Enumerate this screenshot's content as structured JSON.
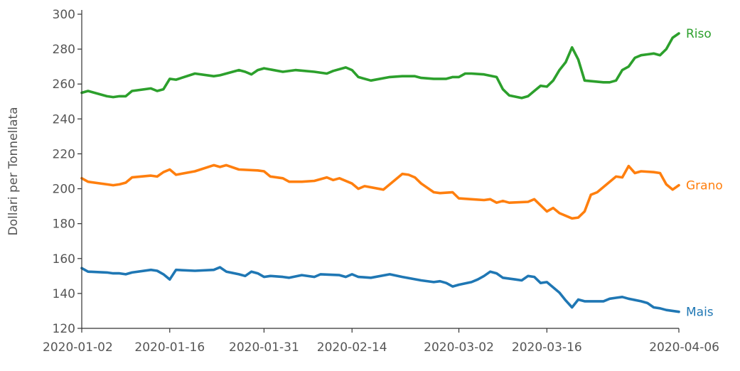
{
  "chart_data": {
    "type": "line",
    "title": "",
    "xlabel": "",
    "ylabel": "Dollari per Tonnellata",
    "ylim": [
      120,
      300
    ],
    "xlim": [
      "2020-01-02",
      "2020-04-06"
    ],
    "y_ticks": [
      120,
      140,
      160,
      180,
      200,
      220,
      240,
      260,
      280,
      300
    ],
    "x_ticks": [
      "2020-01-02",
      "2020-01-16",
      "2020-01-31",
      "2020-02-14",
      "2020-03-02",
      "2020-03-16",
      "2020-04-06"
    ],
    "grid": false,
    "legend": "inline labels at line ends",
    "series": [
      {
        "name": "Riso",
        "color": "#2ca02c",
        "points": [
          [
            "2020-01-02",
            255
          ],
          [
            "2020-01-03",
            256
          ],
          [
            "2020-01-06",
            253
          ],
          [
            "2020-01-07",
            252.5
          ],
          [
            "2020-01-08",
            253
          ],
          [
            "2020-01-09",
            253
          ],
          [
            "2020-01-10",
            256
          ],
          [
            "2020-01-13",
            257.5
          ],
          [
            "2020-01-14",
            256
          ],
          [
            "2020-01-15",
            257
          ],
          [
            "2020-01-16",
            263
          ],
          [
            "2020-01-17",
            262.5
          ],
          [
            "2020-01-20",
            266
          ],
          [
            "2020-01-23",
            264.5
          ],
          [
            "2020-01-24",
            265
          ],
          [
            "2020-01-27",
            268
          ],
          [
            "2020-01-28",
            267
          ],
          [
            "2020-01-29",
            265.5
          ],
          [
            "2020-01-30",
            268
          ],
          [
            "2020-01-31",
            269
          ],
          [
            "2020-02-03",
            267
          ],
          [
            "2020-02-05",
            268
          ],
          [
            "2020-02-08",
            267
          ],
          [
            "2020-02-10",
            266
          ],
          [
            "2020-02-11",
            267.5
          ],
          [
            "2020-02-13",
            269.5
          ],
          [
            "2020-02-14",
            268
          ],
          [
            "2020-02-15",
            264
          ],
          [
            "2020-02-17",
            262
          ],
          [
            "2020-02-20",
            264
          ],
          [
            "2020-02-22",
            264.5
          ],
          [
            "2020-02-24",
            264.5
          ],
          [
            "2020-02-25",
            263.5
          ],
          [
            "2020-02-27",
            263
          ],
          [
            "2020-02-29",
            263
          ],
          [
            "2020-03-01",
            264
          ],
          [
            "2020-03-02",
            264
          ],
          [
            "2020-03-03",
            266
          ],
          [
            "2020-03-04",
            266
          ],
          [
            "2020-03-06",
            265.5
          ],
          [
            "2020-03-08",
            264
          ],
          [
            "2020-03-09",
            257
          ],
          [
            "2020-03-10",
            253.5
          ],
          [
            "2020-03-12",
            252
          ],
          [
            "2020-03-13",
            253
          ],
          [
            "2020-03-14",
            256
          ],
          [
            "2020-03-15",
            259
          ],
          [
            "2020-03-16",
            258.5
          ],
          [
            "2020-03-17",
            262
          ],
          [
            "2020-03-18",
            268
          ],
          [
            "2020-03-19",
            272.5
          ],
          [
            "2020-03-20",
            281
          ],
          [
            "2020-03-21",
            274
          ],
          [
            "2020-03-22",
            262
          ],
          [
            "2020-03-25",
            261
          ],
          [
            "2020-03-26",
            261
          ],
          [
            "2020-03-27",
            262
          ],
          [
            "2020-03-28",
            268
          ],
          [
            "2020-03-29",
            270
          ],
          [
            "2020-03-30",
            275
          ],
          [
            "2020-03-31",
            276.5
          ],
          [
            "2020-04-01",
            277
          ],
          [
            "2020-04-02",
            277.5
          ],
          [
            "2020-04-03",
            276.5
          ],
          [
            "2020-04-04",
            280
          ],
          [
            "2020-04-05",
            286.5
          ],
          [
            "2020-04-06",
            289
          ]
        ]
      },
      {
        "name": "Grano",
        "color": "#ff7f0e",
        "points": [
          [
            "2020-01-02",
            206
          ],
          [
            "2020-01-03",
            204
          ],
          [
            "2020-01-06",
            202.5
          ],
          [
            "2020-01-07",
            202
          ],
          [
            "2020-01-08",
            202.5
          ],
          [
            "2020-01-09",
            203.5
          ],
          [
            "2020-01-10",
            206.5
          ],
          [
            "2020-01-13",
            207.5
          ],
          [
            "2020-01-14",
            207
          ],
          [
            "2020-01-15",
            209.5
          ],
          [
            "2020-01-16",
            211
          ],
          [
            "2020-01-17",
            208
          ],
          [
            "2020-01-20",
            210
          ],
          [
            "2020-01-23",
            213.5
          ],
          [
            "2020-01-24",
            212.5
          ],
          [
            "2020-01-25",
            213.5
          ],
          [
            "2020-01-27",
            211
          ],
          [
            "2020-01-30",
            210.5
          ],
          [
            "2020-01-31",
            210
          ],
          [
            "2020-02-01",
            207
          ],
          [
            "2020-02-03",
            206
          ],
          [
            "2020-02-04",
            204
          ],
          [
            "2020-02-06",
            204
          ],
          [
            "2020-02-08",
            204.5
          ],
          [
            "2020-02-10",
            206.5
          ],
          [
            "2020-02-11",
            205
          ],
          [
            "2020-02-12",
            206
          ],
          [
            "2020-02-14",
            203
          ],
          [
            "2020-02-15",
            200
          ],
          [
            "2020-02-16",
            201.5
          ],
          [
            "2020-02-19",
            199.5
          ],
          [
            "2020-02-22",
            208.5
          ],
          [
            "2020-02-23",
            208
          ],
          [
            "2020-02-24",
            206.5
          ],
          [
            "2020-02-25",
            203
          ],
          [
            "2020-02-27",
            198
          ],
          [
            "2020-02-28",
            197.5
          ],
          [
            "2020-03-01",
            198
          ],
          [
            "2020-03-02",
            194.5
          ],
          [
            "2020-03-04",
            194
          ],
          [
            "2020-03-06",
            193.5
          ],
          [
            "2020-03-07",
            194
          ],
          [
            "2020-03-08",
            192
          ],
          [
            "2020-03-09",
            193
          ],
          [
            "2020-03-10",
            192
          ],
          [
            "2020-03-13",
            192.5
          ],
          [
            "2020-03-14",
            194
          ],
          [
            "2020-03-16",
            187
          ],
          [
            "2020-03-17",
            189
          ],
          [
            "2020-03-18",
            186
          ],
          [
            "2020-03-20",
            183
          ],
          [
            "2020-03-21",
            183.5
          ],
          [
            "2020-03-22",
            187
          ],
          [
            "2020-03-23",
            196.5
          ],
          [
            "2020-03-24",
            198
          ],
          [
            "2020-03-27",
            207
          ],
          [
            "2020-03-28",
            206.5
          ],
          [
            "2020-03-29",
            213
          ],
          [
            "2020-03-30",
            209
          ],
          [
            "2020-03-31",
            210
          ],
          [
            "2020-04-02",
            209.5
          ],
          [
            "2020-04-03",
            209
          ],
          [
            "2020-04-04",
            202.5
          ],
          [
            "2020-04-05",
            199.5
          ],
          [
            "2020-04-06",
            202
          ]
        ]
      },
      {
        "name": "Mais",
        "color": "#1f77b4",
        "points": [
          [
            "2020-01-02",
            154.5
          ],
          [
            "2020-01-03",
            152.5
          ],
          [
            "2020-01-06",
            152
          ],
          [
            "2020-01-07",
            151.5
          ],
          [
            "2020-01-08",
            151.5
          ],
          [
            "2020-01-09",
            151
          ],
          [
            "2020-01-10",
            152
          ],
          [
            "2020-01-13",
            153.5
          ],
          [
            "2020-01-14",
            153
          ],
          [
            "2020-01-15",
            151
          ],
          [
            "2020-01-16",
            148
          ],
          [
            "2020-01-17",
            153.5
          ],
          [
            "2020-01-20",
            153
          ],
          [
            "2020-01-23",
            153.5
          ],
          [
            "2020-01-24",
            155
          ],
          [
            "2020-01-25",
            152.5
          ],
          [
            "2020-01-27",
            151
          ],
          [
            "2020-01-28",
            150
          ],
          [
            "2020-01-29",
            152.5
          ],
          [
            "2020-01-30",
            151.5
          ],
          [
            "2020-01-31",
            149.5
          ],
          [
            "2020-02-01",
            150
          ],
          [
            "2020-02-03",
            149.5
          ],
          [
            "2020-02-04",
            149
          ],
          [
            "2020-02-06",
            150.5
          ],
          [
            "2020-02-08",
            149.5
          ],
          [
            "2020-02-09",
            151
          ],
          [
            "2020-02-12",
            150.5
          ],
          [
            "2020-02-13",
            149.5
          ],
          [
            "2020-02-14",
            151
          ],
          [
            "2020-02-15",
            149.5
          ],
          [
            "2020-02-17",
            149
          ],
          [
            "2020-02-20",
            151
          ],
          [
            "2020-02-22",
            149.5
          ],
          [
            "2020-02-25",
            147.5
          ],
          [
            "2020-02-27",
            146.5
          ],
          [
            "2020-02-28",
            147
          ],
          [
            "2020-02-29",
            146
          ],
          [
            "2020-03-01",
            144
          ],
          [
            "2020-03-02",
            145
          ],
          [
            "2020-03-04",
            146.5
          ],
          [
            "2020-03-05",
            148
          ],
          [
            "2020-03-06",
            150
          ],
          [
            "2020-03-07",
            152.5
          ],
          [
            "2020-03-08",
            151.5
          ],
          [
            "2020-03-09",
            149
          ],
          [
            "2020-03-11",
            148
          ],
          [
            "2020-03-12",
            147.5
          ],
          [
            "2020-03-13",
            150
          ],
          [
            "2020-03-14",
            149.5
          ],
          [
            "2020-03-15",
            146
          ],
          [
            "2020-03-16",
            146.5
          ],
          [
            "2020-03-18",
            140.5
          ],
          [
            "2020-03-19",
            136
          ],
          [
            "2020-03-20",
            132
          ],
          [
            "2020-03-21",
            136.5
          ],
          [
            "2020-03-22",
            135.5
          ],
          [
            "2020-03-25",
            135.5
          ],
          [
            "2020-03-26",
            137
          ],
          [
            "2020-03-27",
            137.5
          ],
          [
            "2020-03-28",
            138
          ],
          [
            "2020-03-29",
            137
          ],
          [
            "2020-03-31",
            135.5
          ],
          [
            "2020-04-01",
            134.5
          ],
          [
            "2020-04-02",
            132
          ],
          [
            "2020-04-03",
            131.5
          ],
          [
            "2020-04-04",
            130.5
          ],
          [
            "2020-04-06",
            129.5
          ]
        ]
      }
    ]
  }
}
